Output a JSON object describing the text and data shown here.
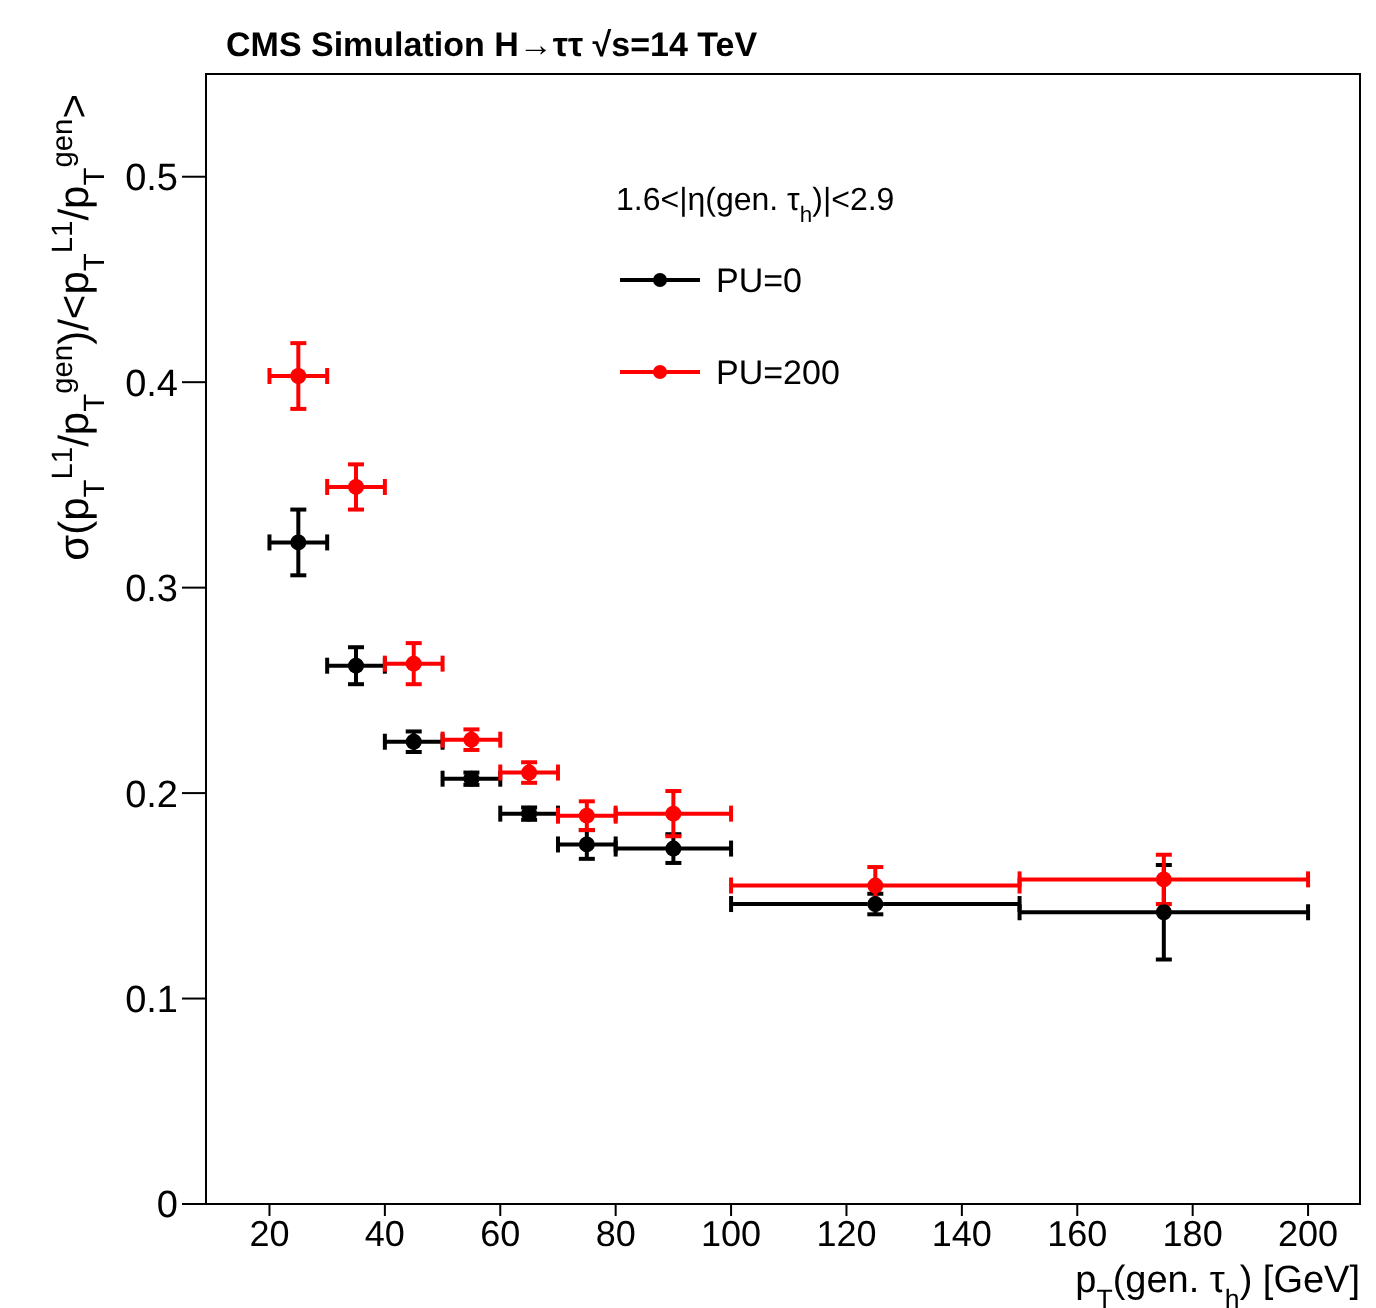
{
  "chart_data": {
    "type": "scatter",
    "title": "CMS Simulation H→ττ  √s=14 TeV",
    "xlabel": "p$_{T}$(gen. τ$_{h}$) [GeV]",
    "ylabel": "σ(p$_{T}$$^{L1}$/p$_{T}$$^{gen}$)/<p$_{T}$$^{L1}$/p$_{T}$$^{gen}$>",
    "annotations": [
      "1.6<|η(gen. τ$_{h}$)|<2.9"
    ],
    "x": [
      25,
      35,
      45,
      55,
      65,
      75,
      90,
      125,
      175
    ],
    "series": [
      {
        "name": "PU=0",
        "color": "#000000",
        "values": [
          0.322,
          0.262,
          0.225,
          0.207,
          0.19,
          0.175,
          0.173,
          0.146,
          0.142
        ],
        "errors": [
          0.016,
          0.009,
          0.005,
          0.003,
          0.003,
          0.007,
          0.007,
          0.005,
          0.023
        ],
        "xerrors": [
          5,
          5,
          5,
          5,
          5,
          5,
          10,
          25,
          25
        ]
      },
      {
        "name": "PU=200",
        "color": "#ff0000",
        "values": [
          0.403,
          0.349,
          0.263,
          0.226,
          0.21,
          0.189,
          0.19,
          0.155,
          0.158
        ],
        "errors": [
          0.016,
          0.011,
          0.01,
          0.005,
          0.005,
          0.007,
          0.011,
          0.009,
          0.012
        ],
        "xerrors": [
          5,
          5,
          5,
          5,
          5,
          5,
          10,
          25,
          25
        ]
      }
    ],
    "xlim": [
      9,
      209
    ],
    "ylim": [
      0,
      0.55
    ],
    "xticks": [
      20,
      40,
      60,
      80,
      100,
      120,
      140,
      160,
      180,
      200
    ],
    "yticks": [
      0,
      0.1,
      0.2,
      0.3,
      0.4,
      0.5
    ],
    "marker": "circle",
    "legend": "top right",
    "grid": false
  }
}
